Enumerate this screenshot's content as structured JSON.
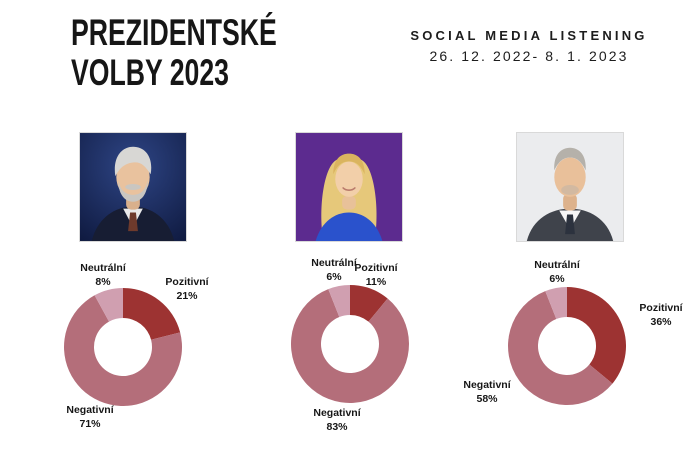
{
  "header": {
    "title_line1": "PREZIDENTSKÉ",
    "title_line2": "VOLBY 2023",
    "subtitle": "SOCIAL MEDIA LISTENING",
    "date_range": "26. 12. 2022- 8. 1. 2023"
  },
  "colors": {
    "positive": "#9d3332",
    "negative": "#b46e7a",
    "neutral": "#d09fb0",
    "text": "#161616",
    "background": "#ffffff"
  },
  "chart_data": [
    {
      "type": "pie",
      "donut": true,
      "photo_desc": "gray-haired bearded man in dark suit on dark blue background",
      "segments_clockwise_from_top": true,
      "segments": [
        {
          "label": "Pozitivní",
          "value": 21,
          "pct_label": "21%",
          "color_key": "positive"
        },
        {
          "label": "Negativní",
          "value": 71,
          "pct_label": "71%",
          "color_key": "negative"
        },
        {
          "label": "Neutrální",
          "value": 8,
          "pct_label": "8%",
          "color_key": "neutral"
        }
      ]
    },
    {
      "type": "pie",
      "donut": true,
      "photo_desc": "blonde woman in blue top on purple background",
      "segments_clockwise_from_top": true,
      "segments": [
        {
          "label": "Pozitivní",
          "value": 11,
          "pct_label": "11%",
          "color_key": "positive"
        },
        {
          "label": "Negativní",
          "value": 83,
          "pct_label": "83%",
          "color_key": "negative"
        },
        {
          "label": "Neutrální",
          "value": 6,
          "pct_label": "6%",
          "color_key": "neutral"
        }
      ]
    },
    {
      "type": "pie",
      "donut": true,
      "photo_desc": "gray-haired man in dark suit on light gray background",
      "segments_clockwise_from_top": true,
      "segments": [
        {
          "label": "Pozitivní",
          "value": 36,
          "pct_label": "36%",
          "color_key": "positive"
        },
        {
          "label": "Negativní",
          "value": 58,
          "pct_label": "58%",
          "color_key": "negative"
        },
        {
          "label": "Neutrální",
          "value": 6,
          "pct_label": "6%",
          "color_key": "neutral"
        }
      ]
    }
  ]
}
